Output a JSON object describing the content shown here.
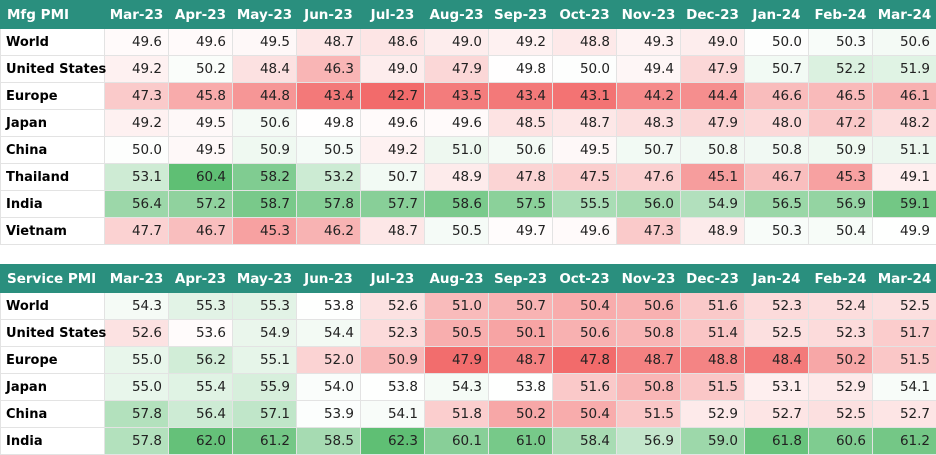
{
  "mfg": {
    "title": "Mfg PMI",
    "months": [
      "Mar-23",
      "Apr-23",
      "May-23",
      "Jun-23",
      "Jul-23",
      "Aug-23",
      "Sep-23",
      "Oct-23",
      "Nov-23",
      "Dec-23",
      "Jan-24",
      "Feb-24",
      "Mar-24"
    ],
    "rows": [
      {
        "region": "World",
        "values": [
          "49.6",
          "49.6",
          "49.5",
          "48.7",
          "48.6",
          "49.0",
          "49.2",
          "48.8",
          "49.3",
          "49.0",
          "50.0",
          "50.3",
          "50.6"
        ]
      },
      {
        "region": "United States",
        "values": [
          "49.2",
          "50.2",
          "48.4",
          "46.3",
          "49.0",
          "47.9",
          "49.8",
          "50.0",
          "49.4",
          "47.9",
          "50.7",
          "52.2",
          "51.9"
        ]
      },
      {
        "region": "Europe",
        "values": [
          "47.3",
          "45.8",
          "44.8",
          "43.4",
          "42.7",
          "43.5",
          "43.4",
          "43.1",
          "44.2",
          "44.4",
          "46.6",
          "46.5",
          "46.1"
        ]
      },
      {
        "region": "Japan",
        "values": [
          "49.2",
          "49.5",
          "50.6",
          "49.8",
          "49.6",
          "49.6",
          "48.5",
          "48.7",
          "48.3",
          "47.9",
          "48.0",
          "47.2",
          "48.2"
        ]
      },
      {
        "region": "China",
        "values": [
          "50.0",
          "49.5",
          "50.9",
          "50.5",
          "49.2",
          "51.0",
          "50.6",
          "49.5",
          "50.7",
          "50.8",
          "50.8",
          "50.9",
          "51.1"
        ]
      },
      {
        "region": "Thailand",
        "values": [
          "53.1",
          "60.4",
          "58.2",
          "53.2",
          "50.7",
          "48.9",
          "47.8",
          "47.5",
          "47.6",
          "45.1",
          "46.7",
          "45.3",
          "49.1"
        ]
      },
      {
        "region": "India",
        "values": [
          "56.4",
          "57.2",
          "58.7",
          "57.8",
          "57.7",
          "58.6",
          "57.5",
          "55.5",
          "56.0",
          "54.9",
          "56.5",
          "56.9",
          "59.1"
        ]
      },
      {
        "region": "Vietnam",
        "values": [
          "47.7",
          "46.7",
          "45.3",
          "46.2",
          "48.7",
          "50.5",
          "49.7",
          "49.6",
          "47.3",
          "48.9",
          "50.3",
          "50.4",
          "49.9"
        ]
      }
    ]
  },
  "service": {
    "title": "Service PMI",
    "months": [
      "Mar-23",
      "Apr-23",
      "May-23",
      "Jun-23",
      "Jul-23",
      "Aug-23",
      "Sep-23",
      "Oct-23",
      "Nov-23",
      "Dec-23",
      "Jan-24",
      "Feb-24",
      "Mar-24"
    ],
    "rows": [
      {
        "region": "World",
        "values": [
          "54.3",
          "55.3",
          "55.3",
          "53.8",
          "52.6",
          "51.0",
          "50.7",
          "50.4",
          "50.6",
          "51.6",
          "52.3",
          "52.4",
          "52.5"
        ]
      },
      {
        "region": "United States",
        "values": [
          "52.6",
          "53.6",
          "54.9",
          "54.4",
          "52.3",
          "50.5",
          "50.1",
          "50.6",
          "50.8",
          "51.4",
          "52.5",
          "52.3",
          "51.7"
        ]
      },
      {
        "region": "Europe",
        "values": [
          "55.0",
          "56.2",
          "55.1",
          "52.0",
          "50.9",
          "47.9",
          "48.7",
          "47.8",
          "48.7",
          "48.8",
          "48.4",
          "50.2",
          "51.5"
        ]
      },
      {
        "region": "Japan",
        "values": [
          "55.0",
          "55.4",
          "55.9",
          "54.0",
          "53.8",
          "54.3",
          "53.8",
          "51.6",
          "50.8",
          "51.5",
          "53.1",
          "52.9",
          "54.1"
        ]
      },
      {
        "region": "China",
        "values": [
          "57.8",
          "56.4",
          "57.1",
          "53.9",
          "54.1",
          "51.8",
          "50.2",
          "50.4",
          "51.5",
          "52.9",
          "52.7",
          "52.5",
          "52.7"
        ]
      },
      {
        "region": "India",
        "values": [
          "57.8",
          "62.0",
          "61.2",
          "58.5",
          "62.3",
          "60.1",
          "61.0",
          "58.4",
          "56.9",
          "59.0",
          "61.8",
          "60.6",
          "61.2"
        ]
      }
    ]
  },
  "colors": {
    "header_bg": "#2a8f7e",
    "header_text": "#ffffff",
    "scale_low": "#f26b6b",
    "scale_mid": "#ffffff",
    "scale_high": "#5fbf74"
  }
}
